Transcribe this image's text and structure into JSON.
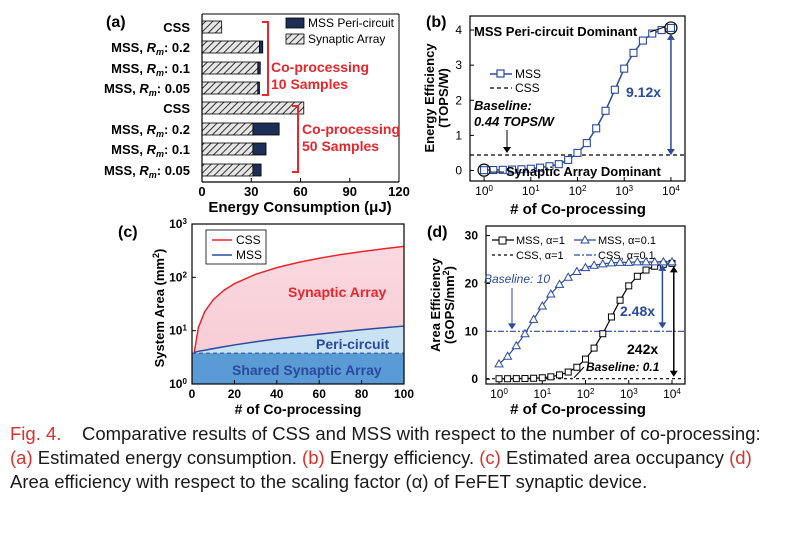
{
  "panel_labels": [
    "(a)",
    "(b)",
    "(c)",
    "(d)"
  ],
  "caption": {
    "fig_label": "Fig. 4.",
    "lead": "Comparative results of CSS and MSS with respect to the number of co-processing:",
    "a_tag": "(a)",
    "a_text": "Estimated energy consumption.",
    "b_tag": "(b)",
    "b_text": "Energy efficiency.",
    "c_tag": "(c)",
    "c_text": "Estimated area occupancy",
    "d_tag": "(d)",
    "d_text": "Area efficiency with respect to the scaling factor (α) of FeFET synaptic device."
  },
  "colors": {
    "red": "#e8262b",
    "blue": "#2a4a9e",
    "black": "#111111",
    "grey": "#808080"
  },
  "chart_data": [
    {
      "panel": "(a)",
      "type": "bar",
      "orientation": "horizontal",
      "stacked": true,
      "xlabel": "Energy Consumption (μJ)",
      "xlim": [
        0,
        120
      ],
      "xticks": [
        "0",
        "30",
        "60",
        "90",
        "120"
      ],
      "categories": [
        "CSS",
        "MSS, Rm: 0.2",
        "MSS, Rm: 0.1",
        "MSS, Rm: 0.05",
        "CSS",
        "MSS, Rm: 0.2",
        "MSS, Rm: 0.1",
        "MSS, Rm: 0.05"
      ],
      "series": [
        {
          "name": "Synaptic Array",
          "values": [
            12,
            35,
            34,
            34,
            62,
            31,
            31,
            31
          ]
        },
        {
          "name": "MSS Peri-circuit",
          "values": [
            0,
            2,
            1.5,
            1,
            0,
            16,
            8,
            5
          ]
        }
      ],
      "annotations": [
        "Co-processing",
        "10 Samples",
        "Co-processing",
        "50 Samples"
      ]
    },
    {
      "panel": "(b)",
      "type": "line",
      "xscale": "log",
      "xlabel": "# of Co-processing",
      "ylabel": "Energy Efficiency (TOPS/W)",
      "xticks": [
        "10^0",
        "10^1",
        "10^2",
        "10^3",
        "10^4"
      ],
      "yticks": [
        "0",
        "1",
        "2",
        "3",
        "4"
      ],
      "xlim": [
        0.5,
        20000
      ],
      "ylim": [
        -0.3,
        4.4
      ],
      "series": [
        {
          "name": "MSS",
          "x": [
            1,
            1.58,
            2.51,
            3.98,
            6.31,
            10,
            15.8,
            25.1,
            39.8,
            63.1,
            100,
            158,
            251,
            398,
            631,
            1000,
            1580,
            2510,
            3980,
            6310,
            10000
          ],
          "y": [
            0.009,
            0.012,
            0.018,
            0.025,
            0.035,
            0.05,
            0.08,
            0.12,
            0.18,
            0.3,
            0.5,
            0.78,
            1.2,
            1.7,
            2.3,
            2.9,
            3.35,
            3.7,
            3.9,
            4.0,
            4.06
          ]
        },
        {
          "name": "CSS",
          "x": [
            0.5,
            20000
          ],
          "y": [
            0.44,
            0.44
          ]
        }
      ],
      "annotations": [
        "MSS Peri-circuit Dominant",
        "Baseline:",
        "0.44 TOPS/W",
        "Synaptic Array Dominant",
        "9.12x"
      ]
    },
    {
      "panel": "(c)",
      "type": "area",
      "yscale": "log",
      "xlabel": "# of Co-processing",
      "ylabel": "System Area (mm²)",
      "xticks": [
        "0",
        "20",
        "40",
        "60",
        "80",
        "100"
      ],
      "yticks": [
        "10^0",
        "10^1",
        "10^2",
        "10^3"
      ],
      "xlim": [
        0,
        100
      ],
      "ylim": [
        1,
        1000
      ],
      "series": [
        {
          "name": "CSS",
          "x": [
            1,
            3,
            6,
            10,
            15,
            20,
            30,
            40,
            50,
            60,
            70,
            80,
            90,
            100
          ],
          "y": [
            3.8,
            11.4,
            22.8,
            38,
            57,
            76,
            114,
            152,
            190,
            228,
            266,
            304,
            342,
            380
          ]
        },
        {
          "name": "MSS",
          "x": [
            1,
            3,
            6,
            10,
            15,
            20,
            30,
            40,
            50,
            60,
            70,
            80,
            90,
            100
          ],
          "y": [
            3.9,
            4.1,
            4.3,
            4.6,
            5.0,
            5.4,
            6.2,
            7.0,
            7.8,
            8.6,
            9.5,
            10.4,
            11.3,
            12.2
          ]
        },
        {
          "name": "Shared Synaptic Array",
          "x": [
            0,
            100
          ],
          "y": [
            3.8,
            3.8
          ]
        }
      ],
      "annotations": [
        "Synaptic Array",
        "Peri-circuit",
        "Shared Synaptic Array"
      ]
    },
    {
      "panel": "(d)",
      "type": "line",
      "xscale": "log",
      "xlabel": "# of Co-processing",
      "ylabel": "Area Efficiency (GOPS/mm²)",
      "xticks": [
        "10^0",
        "10^1",
        "10^2",
        "10^3",
        "10^4"
      ],
      "yticks": [
        "0",
        "10",
        "20",
        "30"
      ],
      "xlim": [
        0.5,
        20000
      ],
      "ylim": [
        -1,
        32
      ],
      "series": [
        {
          "name": "MSS, α=1",
          "x": [
            1,
            1.58,
            2.51,
            3.98,
            6.31,
            10,
            15.8,
            25.1,
            39.8,
            63.1,
            100,
            158,
            251,
            398,
            631,
            1000,
            1580,
            2510,
            3980,
            6310,
            10000
          ],
          "y": [
            0.1,
            0.1,
            0.12,
            0.15,
            0.2,
            0.3,
            0.5,
            0.9,
            1.5,
            2.5,
            4.2,
            6.5,
            9.5,
            13,
            16.5,
            19.5,
            21.5,
            22.8,
            23.6,
            24,
            24.2
          ]
        },
        {
          "name": "MSS, α=0.1",
          "x": [
            1,
            1.58,
            2.51,
            3.98,
            6.31,
            10,
            15.8,
            25.1,
            39.8,
            63.1,
            100,
            158,
            251,
            398,
            631,
            1000,
            1580,
            2510,
            3980,
            6310,
            10000
          ],
          "y": [
            3.2,
            4.8,
            7,
            9.5,
            12.5,
            15.3,
            17.8,
            19.8,
            21.3,
            22.5,
            23.3,
            23.8,
            24.1,
            24.3,
            24.4,
            24.4,
            24.5,
            24.5,
            24.5,
            24.5,
            24.5
          ]
        },
        {
          "name": "CSS, α=1",
          "x": [
            0.5,
            20000
          ],
          "y": [
            0.1,
            0.1
          ]
        },
        {
          "name": "CSS, α=0.1",
          "x": [
            0.5,
            20000
          ],
          "y": [
            10,
            10
          ]
        }
      ],
      "annotations": [
        "Baseline:  10",
        "2.48x",
        "242x",
        "Baseline:  0.1"
      ]
    }
  ]
}
